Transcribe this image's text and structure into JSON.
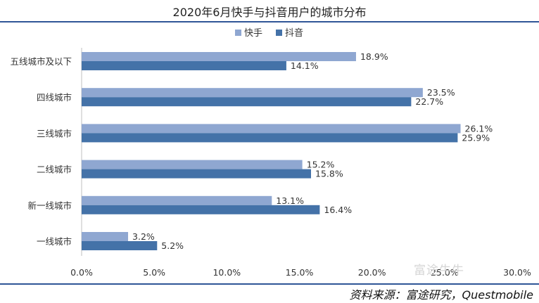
{
  "title": "2020年6月快手与抖音用户的城市分布",
  "source": "资料来源：富途研究，Questmobile",
  "watermark": "富途牛牛",
  "colors": {
    "kuaishou": "#8fa7d1",
    "douyin": "#4472a8",
    "rule": "#2f5597"
  },
  "chart_data": {
    "type": "bar",
    "orientation": "horizontal",
    "categories": [
      "五线城市及以下",
      "四线城市",
      "三线城市",
      "二线城市",
      "新一线城市",
      "一线城市"
    ],
    "series": [
      {
        "name": "快手",
        "values": [
          18.9,
          23.5,
          26.1,
          15.2,
          13.1,
          3.2
        ],
        "labels": [
          "18.9%",
          "23.5%",
          "26.1%",
          "15.2%",
          "13.1%",
          "3.2%"
        ]
      },
      {
        "name": "抖音",
        "values": [
          14.1,
          22.7,
          25.9,
          15.8,
          16.4,
          5.2
        ],
        "labels": [
          "14.1%",
          "22.7%",
          "25.9%",
          "15.8%",
          "16.4%",
          "5.2%"
        ]
      }
    ],
    "xlim": [
      0,
      30
    ],
    "xticks": [
      0,
      5,
      10,
      15,
      20,
      25,
      30
    ],
    "xtick_labels": [
      "0.0%",
      "5.0%",
      "10.0%",
      "15.0%",
      "20.0%",
      "25.0%",
      "30.0%"
    ],
    "legend_position": "top-center",
    "grid": false
  }
}
